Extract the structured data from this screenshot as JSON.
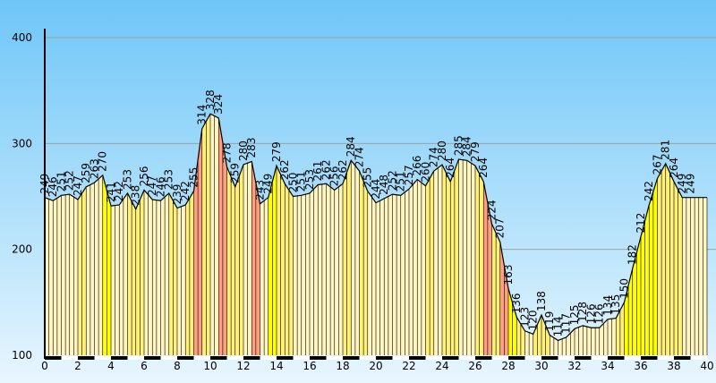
{
  "chart_data": {
    "type": "area",
    "title": "",
    "xlabel": "",
    "ylabel": "",
    "xlim": [
      0,
      40
    ],
    "ylim": [
      100,
      400
    ],
    "grid": true,
    "x_ticks": [
      0,
      2,
      4,
      6,
      8,
      10,
      12,
      14,
      16,
      18,
      20,
      22,
      24,
      26,
      28,
      30,
      32,
      34,
      36,
      38,
      40
    ],
    "y_ticks": [
      100,
      200,
      300,
      400
    ],
    "x_tick_labels": [
      "0",
      "2",
      "4",
      "6",
      "8",
      "10",
      "12",
      "14",
      "16",
      "18",
      "20",
      "22",
      "24",
      "26",
      "28",
      "30",
      "32",
      "34",
      "36",
      "38",
      "40"
    ],
    "y_tick_labels": [
      "100",
      "200",
      "300",
      "400"
    ],
    "colors": {
      "background_top": "#6ec6f8",
      "background_bottom": "#e8f6fe",
      "fill_light": "#fff5c0",
      "fill_medium": "#fff07a",
      "fill_strong": "#ffff00",
      "fill_steep": "#ff9f80",
      "gridline": "#a0a0a0",
      "outline": "#000000"
    },
    "series": [
      {
        "x": [
          0.0,
          0.5,
          1.0,
          1.5,
          2.0,
          2.5,
          3.0,
          3.5,
          4.0,
          4.5,
          5.0,
          5.5,
          6.0,
          6.5,
          7.0,
          7.5,
          8.0,
          8.5,
          9.0,
          9.5,
          10.0,
          10.5,
          11.0,
          11.5,
          12.0,
          12.5,
          13.0,
          13.5,
          14.0,
          14.5,
          15.0,
          15.5,
          16.0,
          16.5,
          17.0,
          17.5,
          18.0,
          18.5,
          19.0,
          19.5,
          20.0,
          20.5,
          21.0,
          21.5,
          22.0,
          22.5,
          23.0,
          23.5,
          24.0,
          24.5,
          25.0,
          25.5,
          26.0,
          26.5,
          27.0,
          27.5,
          28.0,
          28.5,
          29.0,
          29.5,
          30.0,
          30.5,
          31.0,
          31.5,
          32.0,
          32.5,
          33.0,
          33.5,
          34.0,
          34.5,
          35.0,
          35.5,
          36.0,
          36.5,
          37.0,
          37.5,
          38.0,
          38.5,
          39.0,
          39.5,
          40.0
        ],
        "y": [
          249,
          246,
          251,
          252,
          247,
          259,
          263,
          270,
          241,
          242,
          253,
          238,
          256,
          247,
          246,
          253,
          239,
          242,
          255,
          314,
          328,
          324,
          278,
          259,
          280,
          283,
          243,
          249,
          279,
          262,
          250,
          251,
          253,
          261,
          262,
          256,
          262,
          284,
          274,
          255,
          244,
          248,
          252,
          251,
          257,
          266,
          260,
          274,
          280,
          264,
          285,
          284,
          279,
          264,
          224,
          207,
          163,
          136,
          123,
          120,
          138,
          119,
          114,
          117,
          125,
          128,
          126,
          126,
          134,
          135,
          150,
          182,
          212,
          242,
          267,
          281,
          264,
          249,
          249,
          null,
          null
        ]
      }
    ],
    "labeled_points": [
      {
        "x": 0.0,
        "y": 249,
        "label": "249"
      },
      {
        "x": 0.5,
        "y": 246,
        "label": "246"
      },
      {
        "x": 1.0,
        "y": 251,
        "label": "251"
      },
      {
        "x": 1.5,
        "y": 252,
        "label": "252"
      },
      {
        "x": 2.0,
        "y": 247,
        "label": "247"
      },
      {
        "x": 2.5,
        "y": 259,
        "label": "259"
      },
      {
        "x": 3.0,
        "y": 263,
        "label": "263"
      },
      {
        "x": 3.5,
        "y": 270,
        "label": "270"
      },
      {
        "x": 4.0,
        "y": 241,
        "label": "241"
      },
      {
        "x": 4.5,
        "y": 242,
        "label": "242"
      },
      {
        "x": 5.0,
        "y": 253,
        "label": "253"
      },
      {
        "x": 5.5,
        "y": 238,
        "label": "238"
      },
      {
        "x": 6.0,
        "y": 256,
        "label": "256"
      },
      {
        "x": 6.5,
        "y": 247,
        "label": "247"
      },
      {
        "x": 7.0,
        "y": 246,
        "label": "246"
      },
      {
        "x": 7.5,
        "y": 253,
        "label": "253"
      },
      {
        "x": 8.0,
        "y": 239,
        "label": "239"
      },
      {
        "x": 8.5,
        "y": 242,
        "label": "242"
      },
      {
        "x": 9.0,
        "y": 255,
        "label": "255"
      },
      {
        "x": 9.5,
        "y": 314,
        "label": "314"
      },
      {
        "x": 10.0,
        "y": 328,
        "label": "328"
      },
      {
        "x": 10.5,
        "y": 324,
        "label": "324"
      },
      {
        "x": 11.0,
        "y": 278,
        "label": "278"
      },
      {
        "x": 11.5,
        "y": 259,
        "label": "259"
      },
      {
        "x": 12.0,
        "y": 280,
        "label": "280"
      },
      {
        "x": 12.5,
        "y": 283,
        "label": "283"
      },
      {
        "x": 13.0,
        "y": 243,
        "label": "243"
      },
      {
        "x": 13.5,
        "y": 249,
        "label": "249"
      },
      {
        "x": 14.0,
        "y": 279,
        "label": "279"
      },
      {
        "x": 14.5,
        "y": 262,
        "label": "262"
      },
      {
        "x": 15.0,
        "y": 250,
        "label": "250"
      },
      {
        "x": 15.5,
        "y": 251,
        "label": "251"
      },
      {
        "x": 16.0,
        "y": 253,
        "label": "253"
      },
      {
        "x": 16.5,
        "y": 261,
        "label": "261"
      },
      {
        "x": 17.0,
        "y": 262,
        "label": "262"
      },
      {
        "x": 17.5,
        "y": 256,
        "label": "256"
      },
      {
        "x": 18.0,
        "y": 262,
        "label": "262"
      },
      {
        "x": 18.5,
        "y": 284,
        "label": "284"
      },
      {
        "x": 19.0,
        "y": 274,
        "label": "274"
      },
      {
        "x": 19.5,
        "y": 255,
        "label": "255"
      },
      {
        "x": 20.0,
        "y": 244,
        "label": "244"
      },
      {
        "x": 20.5,
        "y": 248,
        "label": "248"
      },
      {
        "x": 21.0,
        "y": 252,
        "label": "252"
      },
      {
        "x": 21.5,
        "y": 251,
        "label": "251"
      },
      {
        "x": 22.0,
        "y": 257,
        "label": "257"
      },
      {
        "x": 22.5,
        "y": 266,
        "label": "266"
      },
      {
        "x": 23.0,
        "y": 260,
        "label": "260"
      },
      {
        "x": 23.5,
        "y": 274,
        "label": "274"
      },
      {
        "x": 24.0,
        "y": 280,
        "label": "280"
      },
      {
        "x": 24.5,
        "y": 264,
        "label": "264"
      },
      {
        "x": 25.0,
        "y": 285,
        "label": "285"
      },
      {
        "x": 25.5,
        "y": 284,
        "label": "284"
      },
      {
        "x": 26.0,
        "y": 279,
        "label": "279"
      },
      {
        "x": 26.5,
        "y": 264,
        "label": "264"
      },
      {
        "x": 27.0,
        "y": 224,
        "label": "224"
      },
      {
        "x": 27.5,
        "y": 207,
        "label": "207"
      },
      {
        "x": 28.0,
        "y": 163,
        "label": "163"
      },
      {
        "x": 28.5,
        "y": 136,
        "label": "136"
      },
      {
        "x": 29.0,
        "y": 123,
        "label": "123"
      },
      {
        "x": 29.5,
        "y": 120,
        "label": "120"
      },
      {
        "x": 30.0,
        "y": 138,
        "label": "138"
      },
      {
        "x": 30.5,
        "y": 119,
        "label": "119"
      },
      {
        "x": 31.0,
        "y": 114,
        "label": "114"
      },
      {
        "x": 31.5,
        "y": 117,
        "label": "117"
      },
      {
        "x": 32.0,
        "y": 125,
        "label": "125"
      },
      {
        "x": 32.5,
        "y": 128,
        "label": "128"
      },
      {
        "x": 33.0,
        "y": 126,
        "label": "126"
      },
      {
        "x": 33.5,
        "y": 126,
        "label": "126"
      },
      {
        "x": 34.0,
        "y": 134,
        "label": "134"
      },
      {
        "x": 34.5,
        "y": 135,
        "label": "135"
      },
      {
        "x": 35.0,
        "y": 150,
        "label": "150"
      },
      {
        "x": 35.5,
        "y": 182,
        "label": "182"
      },
      {
        "x": 36.0,
        "y": 212,
        "label": "212"
      },
      {
        "x": 36.5,
        "y": 242,
        "label": "242"
      },
      {
        "x": 37.0,
        "y": 267,
        "label": "267"
      },
      {
        "x": 37.5,
        "y": 281,
        "label": "281"
      },
      {
        "x": 38.0,
        "y": 264,
        "label": "264"
      },
      {
        "x": 38.5,
        "y": 249,
        "label": "249"
      },
      {
        "x": 39.0,
        "y": 249,
        "label": "249"
      }
    ]
  }
}
